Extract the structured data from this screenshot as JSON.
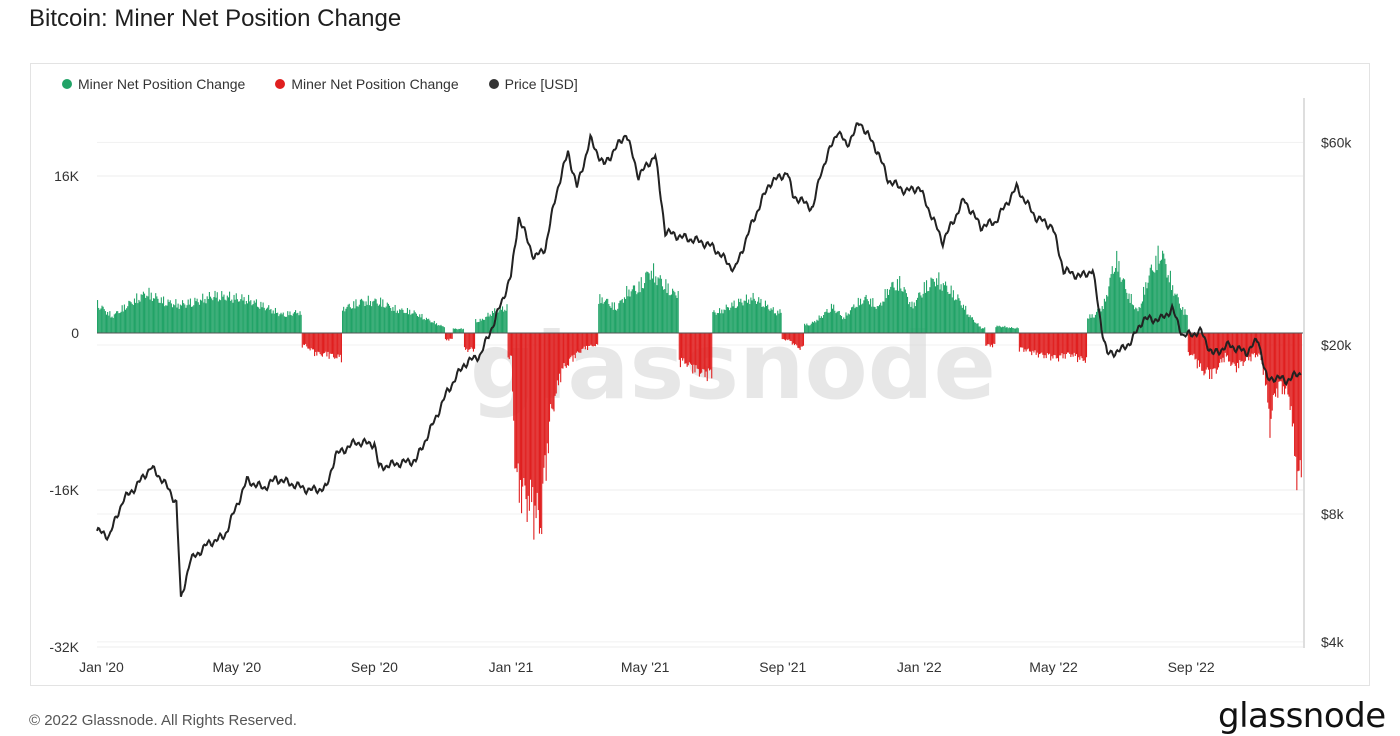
{
  "page": {
    "title": "Bitcoin: Miner Net Position Change",
    "copyright": "© 2022 Glassnode. All Rights Reserved.",
    "brand": "glassnode",
    "watermark": "glassnode"
  },
  "legend": [
    {
      "label": "Miner Net Position Change",
      "color": "#21a367"
    },
    {
      "label": "Miner Net Position Change",
      "color": "#e01f1f"
    },
    {
      "label": "Price [USD]",
      "color": "#333333"
    }
  ],
  "chart_data": {
    "type": "bar",
    "title": "Bitcoin: Miner Net Position Change",
    "xlabel": "",
    "ylabel": "",
    "y_left_ticks": [
      {
        "value": 16000,
        "label": "16K"
      },
      {
        "value": 0,
        "label": "0"
      },
      {
        "value": -16000,
        "label": "-16K"
      },
      {
        "value": -32000,
        "label": "-32K"
      }
    ],
    "y_right_ticks": [
      {
        "value": 60000,
        "label": "$60k"
      },
      {
        "value": 20000,
        "label": "$20k"
      },
      {
        "value": 8000,
        "label": "$8k"
      },
      {
        "value": 4000,
        "label": "$4k"
      }
    ],
    "y_left_range": [
      -32000,
      20000
    ],
    "y_right_range": [
      4000,
      70000
    ],
    "y_right_scale": "log",
    "x_range": [
      "2019-12-28",
      "2022-12-10"
    ],
    "x_ticks": [
      {
        "date": "2020-01-01",
        "label": "Jan '20"
      },
      {
        "date": "2020-05-01",
        "label": "May '20"
      },
      {
        "date": "2020-09-01",
        "label": "Sep '20"
      },
      {
        "date": "2021-01-01",
        "label": "Jan '21"
      },
      {
        "date": "2021-05-01",
        "label": "May '21"
      },
      {
        "date": "2021-09-01",
        "label": "Sep '21"
      },
      {
        "date": "2022-01-01",
        "label": "Jan '22"
      },
      {
        "date": "2022-05-01",
        "label": "May '22"
      },
      {
        "date": "2022-09-01",
        "label": "Sep '22"
      }
    ],
    "grid": true,
    "legend_position": "top-left",
    "positive_color": "#21a367",
    "negative_color": "#e01f1f",
    "price_color": "#222222",
    "series": [
      {
        "name": "Miner Net Position Change",
        "points": [
          [
            "2019-12-28",
            3500
          ],
          [
            "2020-01-10",
            2000
          ],
          [
            "2020-01-25",
            3500
          ],
          [
            "2020-02-10",
            4800
          ],
          [
            "2020-02-25",
            3800
          ],
          [
            "2020-03-10",
            3400
          ],
          [
            "2020-03-25",
            3800
          ],
          [
            "2020-04-10",
            4500
          ],
          [
            "2020-04-25",
            4300
          ],
          [
            "2020-05-10",
            4000
          ],
          [
            "2020-05-25",
            3200
          ],
          [
            "2020-06-10",
            2200
          ],
          [
            "2020-06-25",
            2500
          ],
          [
            "2020-07-01",
            -1500
          ],
          [
            "2020-07-10",
            -2500
          ],
          [
            "2020-07-20",
            -2600
          ],
          [
            "2020-07-31",
            -3000
          ],
          [
            "2020-08-05",
            3000
          ],
          [
            "2020-08-20",
            3800
          ],
          [
            "2020-09-05",
            3800
          ],
          [
            "2020-09-20",
            2800
          ],
          [
            "2020-10-05",
            2500
          ],
          [
            "2020-10-20",
            1500
          ],
          [
            "2020-10-31",
            800
          ],
          [
            "2020-11-05",
            -800
          ],
          [
            "2020-11-15",
            500
          ],
          [
            "2020-11-25",
            -2000
          ],
          [
            "2020-12-05",
            1500
          ],
          [
            "2020-12-15",
            2500
          ],
          [
            "2020-12-25",
            3000
          ],
          [
            "2021-01-01",
            -3000
          ],
          [
            "2021-01-05",
            -18000
          ],
          [
            "2021-01-12",
            -19500
          ],
          [
            "2021-01-20",
            -21000
          ],
          [
            "2021-01-27",
            -23000
          ],
          [
            "2021-02-05",
            -10000
          ],
          [
            "2021-02-15",
            -4500
          ],
          [
            "2021-02-25",
            -3000
          ],
          [
            "2021-03-05",
            -2000
          ],
          [
            "2021-03-15",
            -1500
          ],
          [
            "2021-03-25",
            4000
          ],
          [
            "2021-04-05",
            3000
          ],
          [
            "2021-04-15",
            5000
          ],
          [
            "2021-04-25",
            5500
          ],
          [
            "2021-05-05",
            7500
          ],
          [
            "2021-05-15",
            6200
          ],
          [
            "2021-05-25",
            4800
          ],
          [
            "2021-06-05",
            -3500
          ],
          [
            "2021-06-15",
            -4500
          ],
          [
            "2021-06-25",
            -5000
          ],
          [
            "2021-07-05",
            2500
          ],
          [
            "2021-07-15",
            3200
          ],
          [
            "2021-07-25",
            3800
          ],
          [
            "2021-08-05",
            4200
          ],
          [
            "2021-08-15",
            3500
          ],
          [
            "2021-08-25",
            2500
          ],
          [
            "2021-09-05",
            -800
          ],
          [
            "2021-09-15",
            -1800
          ],
          [
            "2021-09-25",
            1000
          ],
          [
            "2021-10-05",
            2000
          ],
          [
            "2021-10-15",
            3200
          ],
          [
            "2021-10-25",
            1800
          ],
          [
            "2021-11-05",
            3500
          ],
          [
            "2021-11-15",
            4200
          ],
          [
            "2021-11-25",
            3000
          ],
          [
            "2021-12-05",
            5500
          ],
          [
            "2021-12-15",
            6000
          ],
          [
            "2021-12-25",
            3200
          ],
          [
            "2022-01-05",
            5400
          ],
          [
            "2022-01-15",
            6500
          ],
          [
            "2022-01-25",
            5500
          ],
          [
            "2022-02-05",
            4000
          ],
          [
            "2022-02-15",
            2000
          ],
          [
            "2022-02-25",
            600
          ],
          [
            "2022-03-05",
            -1500
          ],
          [
            "2022-03-15",
            800
          ],
          [
            "2022-03-25",
            600
          ],
          [
            "2022-04-05",
            -2000
          ],
          [
            "2022-04-15",
            -2500
          ],
          [
            "2022-04-25",
            -2800
          ],
          [
            "2022-05-05",
            -3000
          ],
          [
            "2022-05-15",
            -2500
          ],
          [
            "2022-05-25",
            -3200
          ],
          [
            "2022-06-05",
            2000
          ],
          [
            "2022-06-15",
            3500
          ],
          [
            "2022-06-25",
            9000
          ],
          [
            "2022-07-05",
            5000
          ],
          [
            "2022-07-15",
            2500
          ],
          [
            "2022-07-25",
            7000
          ],
          [
            "2022-08-05",
            9800
          ],
          [
            "2022-08-15",
            5500
          ],
          [
            "2022-08-25",
            2500
          ],
          [
            "2022-09-01",
            -2500
          ],
          [
            "2022-09-10",
            -4500
          ],
          [
            "2022-09-20",
            -5000
          ],
          [
            "2022-10-01",
            -2800
          ],
          [
            "2022-10-10",
            -4200
          ],
          [
            "2022-10-20",
            -3200
          ],
          [
            "2022-10-31",
            -2500
          ],
          [
            "2022-11-05",
            -4800
          ],
          [
            "2022-11-10",
            -11000
          ],
          [
            "2022-11-15",
            -7000
          ],
          [
            "2022-11-22",
            -6500
          ],
          [
            "2022-11-28",
            -8000
          ],
          [
            "2022-12-03",
            -16000
          ],
          [
            "2022-12-08",
            -18000
          ]
        ]
      },
      {
        "name": "Price [USD]",
        "points": [
          [
            "2019-12-28",
            7300
          ],
          [
            "2020-01-08",
            7100
          ],
          [
            "2020-01-20",
            8600
          ],
          [
            "2020-02-01",
            9300
          ],
          [
            "2020-02-14",
            10300
          ],
          [
            "2020-02-25",
            9600
          ],
          [
            "2020-03-08",
            8500
          ],
          [
            "2020-03-12",
            5000
          ],
          [
            "2020-03-20",
            6200
          ],
          [
            "2020-04-05",
            6800
          ],
          [
            "2020-04-20",
            7100
          ],
          [
            "2020-05-05",
            8900
          ],
          [
            "2020-05-10",
            9600
          ],
          [
            "2020-05-25",
            9200
          ],
          [
            "2020-06-05",
            9700
          ],
          [
            "2020-06-20",
            9400
          ],
          [
            "2020-07-05",
            9100
          ],
          [
            "2020-07-20",
            9200
          ],
          [
            "2020-07-28",
            11000
          ],
          [
            "2020-08-15",
            11800
          ],
          [
            "2020-09-01",
            11700
          ],
          [
            "2020-09-05",
            10300
          ],
          [
            "2020-09-20",
            10500
          ],
          [
            "2020-10-08",
            10700
          ],
          [
            "2020-10-22",
            12800
          ],
          [
            "2020-11-05",
            15500
          ],
          [
            "2020-11-20",
            18000
          ],
          [
            "2020-12-05",
            19000
          ],
          [
            "2020-12-18",
            23000
          ],
          [
            "2021-01-01",
            29000
          ],
          [
            "2021-01-08",
            40000
          ],
          [
            "2021-01-22",
            32000
          ],
          [
            "2021-02-01",
            34000
          ],
          [
            "2021-02-10",
            45000
          ],
          [
            "2021-02-21",
            57000
          ],
          [
            "2021-03-01",
            47000
          ],
          [
            "2021-03-13",
            61000
          ],
          [
            "2021-03-25",
            53000
          ],
          [
            "2021-04-14",
            63000
          ],
          [
            "2021-04-25",
            50000
          ],
          [
            "2021-05-10",
            56000
          ],
          [
            "2021-05-19",
            37000
          ],
          [
            "2021-06-01",
            36000
          ],
          [
            "2021-06-20",
            35000
          ],
          [
            "2021-07-01",
            34000
          ],
          [
            "2021-07-20",
            30000
          ],
          [
            "2021-08-05",
            39000
          ],
          [
            "2021-08-20",
            48000
          ],
          [
            "2021-09-05",
            51000
          ],
          [
            "2021-09-10",
            45000
          ],
          [
            "2021-09-28",
            42000
          ],
          [
            "2021-10-05",
            51000
          ],
          [
            "2021-10-20",
            64000
          ],
          [
            "2021-10-28",
            59000
          ],
          [
            "2021-11-09",
            67000
          ],
          [
            "2021-11-25",
            57000
          ],
          [
            "2021-12-04",
            49000
          ],
          [
            "2021-12-20",
            46000
          ],
          [
            "2022-01-01",
            47000
          ],
          [
            "2022-01-22",
            35000
          ],
          [
            "2022-02-10",
            44000
          ],
          [
            "2022-02-25",
            38000
          ],
          [
            "2022-03-10",
            39000
          ],
          [
            "2022-03-29",
            47000
          ],
          [
            "2022-04-15",
            40000
          ],
          [
            "2022-04-30",
            38000
          ],
          [
            "2022-05-10",
            30000
          ],
          [
            "2022-05-25",
            29000
          ],
          [
            "2022-06-05",
            30000
          ],
          [
            "2022-06-13",
            22000
          ],
          [
            "2022-06-18",
            19000
          ],
          [
            "2022-07-01",
            19500
          ],
          [
            "2022-07-10",
            20500
          ],
          [
            "2022-07-20",
            23000
          ],
          [
            "2022-08-05",
            23000
          ],
          [
            "2022-08-15",
            24300
          ],
          [
            "2022-08-25",
            21000
          ],
          [
            "2022-09-10",
            21500
          ],
          [
            "2022-09-20",
            19000
          ],
          [
            "2022-10-05",
            20000
          ],
          [
            "2022-10-20",
            19200
          ],
          [
            "2022-10-31",
            20600
          ],
          [
            "2022-11-08",
            16500
          ],
          [
            "2022-11-15",
            16800
          ],
          [
            "2022-11-25",
            16500
          ],
          [
            "2022-12-08",
            17200
          ]
        ]
      }
    ]
  }
}
